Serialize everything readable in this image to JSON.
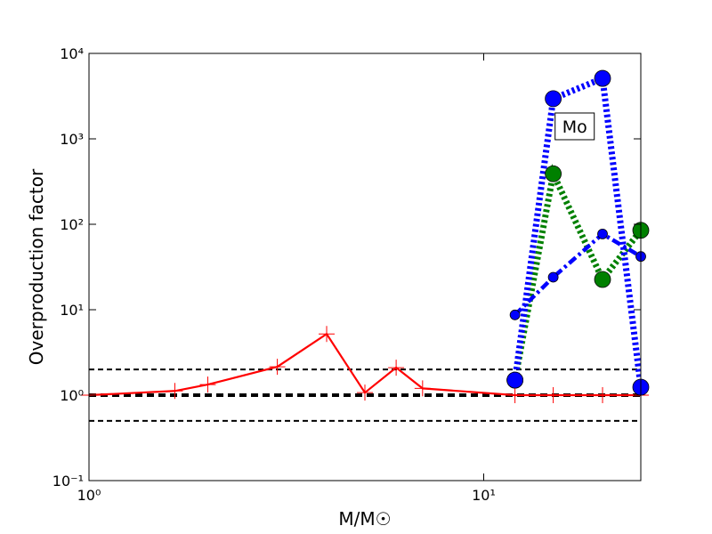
{
  "chart_data": {
    "type": "line",
    "xlabel": "M/M☉",
    "ylabel": "Overproduction factor",
    "xscale": "log",
    "yscale": "log",
    "xlim": [
      1,
      25
    ],
    "ylim": [
      0.1,
      10000
    ],
    "xticks": [
      {
        "value": 1,
        "label": "10⁰"
      },
      {
        "value": 10,
        "label": "10¹"
      }
    ],
    "yticks": [
      {
        "value": 0.1,
        "label": "10⁻¹"
      },
      {
        "value": 1,
        "label": "10⁰"
      },
      {
        "value": 10,
        "label": "10¹"
      },
      {
        "value": 100,
        "label": "10²"
      },
      {
        "value": 1000,
        "label": "10³"
      },
      {
        "value": 10000,
        "label": "10⁴"
      }
    ],
    "hlines": [
      0.5,
      1,
      2
    ],
    "annotation": {
      "text": "Mo",
      "x": 17,
      "y": 1400
    },
    "series": [
      {
        "color": "#ff0000",
        "linestyle": "solid",
        "marker": "plus",
        "x": [
          1,
          1.65,
          2,
          3,
          4,
          5,
          6,
          7,
          12,
          15,
          20,
          25
        ],
        "values": [
          1.0,
          1.12,
          1.33,
          2.15,
          5.2,
          1.07,
          2.1,
          1.2,
          1.0,
          1.0,
          1.0,
          1.0
        ]
      },
      {
        "color": "#008000",
        "linestyle": "dotted",
        "marker": "circle-large",
        "x": [
          12,
          15,
          20,
          25
        ],
        "values": [
          1.5,
          390,
          22.6,
          85
        ]
      },
      {
        "color": "#0000ff",
        "linestyle": "dotted",
        "marker": "circle-large",
        "x": [
          12,
          15,
          20,
          25
        ],
        "values": [
          1.5,
          2950,
          5100,
          1.24
        ]
      },
      {
        "color": "#0000ff",
        "linestyle": "dashdot",
        "marker": "circle-small",
        "x": [
          12,
          15,
          20,
          25
        ],
        "values": [
          8.7,
          24,
          77,
          42
        ]
      }
    ]
  }
}
